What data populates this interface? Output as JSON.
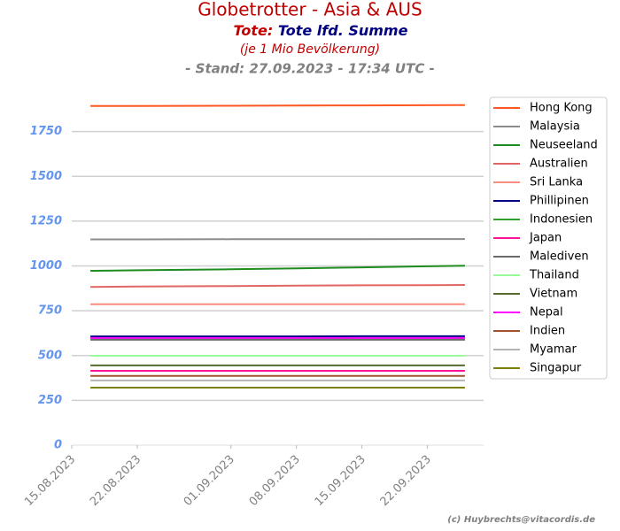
{
  "chart_data": {
    "type": "line",
    "title": "Globetrotter - Asia & AUS",
    "metric_label": "Tote:",
    "subtitle": "Tote lfd. Summe",
    "note": "(je 1 Mio Bevölkerung)",
    "timestamp": "- Stand: 27.09.2023 - 17:34 UTC -",
    "credit": "(c) Huybrechts@vitacordis.de",
    "x": [
      "17.08.2023",
      "22.08.2023",
      "01.09.2023",
      "08.09.2023",
      "15.09.2023",
      "22.09.2023",
      "26.09.2023"
    ],
    "xlim": [
      "15.08.2023",
      "28.09.2023"
    ],
    "xticks": [
      "15.08.2023",
      "22.08.2023",
      "01.09.2023",
      "08.09.2023",
      "15.09.2023",
      "22.09.2023"
    ],
    "ylim": [
      0,
      2000
    ],
    "yticks": [
      0,
      250,
      500,
      750,
      1000,
      1250,
      1500,
      1750
    ],
    "grid": true,
    "legend": "right",
    "series": [
      {
        "name": "Hong Kong",
        "color": "#ff5722",
        "values": [
          1893,
          1893,
          1894,
          1895,
          1896,
          1897,
          1898
        ]
      },
      {
        "name": "Malaysia",
        "color": "#8c8c8c",
        "values": [
          1148,
          1148,
          1149,
          1149,
          1149,
          1150,
          1150
        ]
      },
      {
        "name": "Neuseeland",
        "color": "#1e8c1e",
        "values": [
          973,
          976,
          981,
          986,
          992,
          998,
          1001
        ]
      },
      {
        "name": "Australien",
        "color": "#e06666",
        "values": [
          883,
          885,
          888,
          890,
          892,
          893,
          894
        ]
      },
      {
        "name": "Sri Lanka",
        "color": "#fa8c80",
        "values": [
          786,
          786,
          786,
          786,
          786,
          786,
          786
        ]
      },
      {
        "name": "Phillipinen",
        "color": "#000080",
        "values": [
          607,
          607,
          607,
          607,
          608,
          608,
          608
        ]
      },
      {
        "name": "Indonesien",
        "color": "#33a02c",
        "values": [
          590,
          590,
          590,
          590,
          590,
          590,
          590
        ]
      },
      {
        "name": "Japan",
        "color": "#ff1493",
        "values": [
          415,
          415,
          415,
          415,
          415,
          415,
          415
        ]
      },
      {
        "name": "Malediven",
        "color": "#696969",
        "values": [
          588,
          588,
          588,
          588,
          588,
          588,
          588
        ]
      },
      {
        "name": "Thailand",
        "color": "#98fb98",
        "values": [
          499,
          499,
          499,
          499,
          499,
          499,
          499
        ]
      },
      {
        "name": "Vietnam",
        "color": "#556b2f",
        "values": [
          445,
          445,
          445,
          445,
          445,
          445,
          445
        ]
      },
      {
        "name": "Nepal",
        "color": "#ff00ff",
        "values": [
          598,
          598,
          598,
          598,
          598,
          598,
          598
        ]
      },
      {
        "name": "Indien",
        "color": "#a0522d",
        "values": [
          386,
          386,
          386,
          386,
          386,
          386,
          386
        ]
      },
      {
        "name": "Myamar",
        "color": "#b4b4b4",
        "values": [
          361,
          361,
          361,
          361,
          361,
          361,
          361
        ]
      },
      {
        "name": "Singapur",
        "color": "#808000",
        "values": [
          321,
          321,
          321,
          321,
          321,
          321,
          321
        ]
      }
    ]
  }
}
